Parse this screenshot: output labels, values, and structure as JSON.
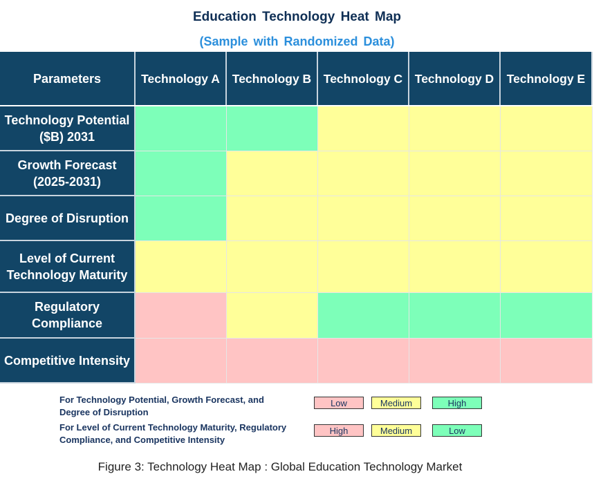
{
  "title": "Education Technology Heat Map",
  "subtitle": "(Sample with Randomized Data)",
  "caption": "Figure 3: Technology Heat Map : Global Education Technology Market",
  "colors": {
    "header": "#124566",
    "green": "#7dffb9",
    "yellow": "#ffff99",
    "pink": "#ffc4c4"
  },
  "chart_data": {
    "type": "heatmap",
    "corner_label": "Parameters",
    "columns": [
      "Technology A",
      "Technology B",
      "Technology C",
      "Technology D",
      "Technology E"
    ],
    "rows": [
      {
        "label": "Technology Potential ($B) 2031",
        "scale": "positive",
        "values": [
          "High",
          "High",
          "Medium",
          "Medium",
          "Medium"
        ]
      },
      {
        "label": "Growth Forecast (2025-2031)",
        "scale": "positive",
        "values": [
          "High",
          "Medium",
          "Medium",
          "Medium",
          "Medium"
        ]
      },
      {
        "label": "Degree of Disruption",
        "scale": "positive",
        "values": [
          "High",
          "Medium",
          "Medium",
          "Medium",
          "Medium"
        ]
      },
      {
        "label": "Level of Current Technology Maturity",
        "scale": "negative",
        "values": [
          "Medium",
          "Medium",
          "Medium",
          "Medium",
          "Medium"
        ]
      },
      {
        "label": "Regulatory Compliance",
        "scale": "negative",
        "values": [
          "High",
          "Medium",
          "Low",
          "Low",
          "Low"
        ]
      },
      {
        "label": "Competitive Intensity",
        "scale": "negative",
        "values": [
          "High",
          "High",
          "High",
          "High",
          "High"
        ]
      }
    ]
  },
  "legend": [
    {
      "text": "For Technology Potential, Growth Forecast, and Degree of Disruption",
      "items": [
        {
          "label": "Low",
          "color": "pink"
        },
        {
          "label": "Medium",
          "color": "yellow"
        },
        {
          "label": "High",
          "color": "green"
        }
      ]
    },
    {
      "text": "For Level of Current Technology Maturity, Regulatory Compliance, and Competitive Intensity",
      "items": [
        {
          "label": "High",
          "color": "pink"
        },
        {
          "label": "Medium",
          "color": "yellow"
        },
        {
          "label": "Low",
          "color": "green"
        }
      ]
    }
  ]
}
